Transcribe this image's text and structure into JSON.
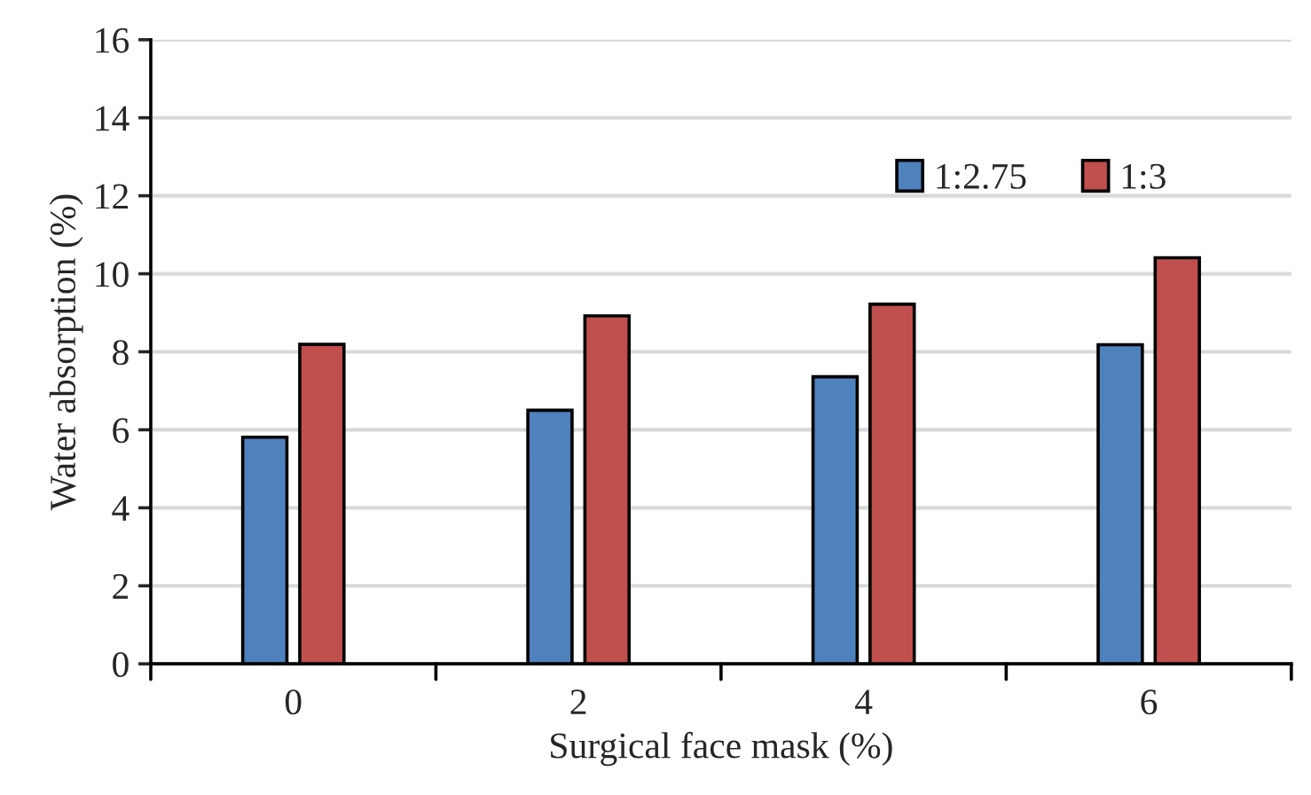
{
  "chart_data": {
    "type": "bar",
    "xlabel": "Surgical face mask (%)",
    "ylabel": "Water absorption (%)",
    "categories": [
      "0",
      "2",
      "4",
      "6"
    ],
    "series": [
      {
        "name": "1:2.75",
        "color": "#4f81bd",
        "values": [
          5.81,
          6.5,
          7.36,
          8.18
        ]
      },
      {
        "name": "1:3",
        "color": "#c0504d",
        "values": [
          8.19,
          8.92,
          9.22,
          10.41
        ]
      }
    ],
    "ylim": [
      0,
      16
    ],
    "yticks": [
      0,
      2,
      4,
      6,
      8,
      10,
      12,
      14,
      16
    ],
    "grid": "y",
    "legend": "top right"
  }
}
